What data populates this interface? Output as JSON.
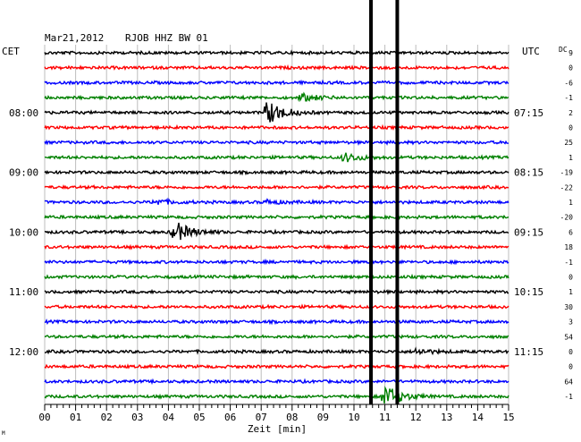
{
  "header": {
    "date": "Mar21,2012",
    "station": "RJOB HHZ BW 01",
    "left_tz": "CET",
    "right_tz": "UTC",
    "dc_label": "DC"
  },
  "chart_data": {
    "type": "line",
    "title": "Mar21,2012   RJOB HHZ BW 01",
    "xlabel": "Zeit [min]",
    "xlim": [
      0,
      15
    ],
    "x_ticks": [
      "00",
      "01",
      "02",
      "03",
      "04",
      "05",
      "06",
      "07",
      "08",
      "09",
      "10",
      "11",
      "12",
      "13",
      "14",
      "15"
    ],
    "grid": true,
    "colors": [
      "#000000",
      "#ff0000",
      "#0000ff",
      "#008000"
    ],
    "rows": 24,
    "left_hour_labels": [
      {
        "row": 4,
        "text": "08:00"
      },
      {
        "row": 8,
        "text": "09:00"
      },
      {
        "row": 12,
        "text": "10:00"
      },
      {
        "row": 16,
        "text": "11:00"
      },
      {
        "row": 20,
        "text": "12:00"
      }
    ],
    "right_hour_labels": [
      {
        "row": 4,
        "text": "07:15"
      },
      {
        "row": 8,
        "text": "08:15"
      },
      {
        "row": 12,
        "text": "09:15"
      },
      {
        "row": 16,
        "text": "10:15"
      },
      {
        "row": 20,
        "text": "11:15"
      }
    ],
    "dc_offsets": [
      "9",
      "0",
      "-6",
      "-1",
      "2",
      "0",
      "25",
      "1",
      "-19",
      "-22",
      "1",
      "-20",
      "6",
      "18",
      "-1",
      "0",
      "1",
      "30",
      "3",
      "54",
      "0",
      "0",
      "64",
      "-1"
    ],
    "events": [
      {
        "row": 3,
        "minute": 8.3,
        "amplitude": 4
      },
      {
        "row": 4,
        "minute": 7.2,
        "amplitude": 14
      },
      {
        "row": 7,
        "minute": 9.7,
        "amplitude": 5
      },
      {
        "row": 10,
        "minute": 3.6,
        "amplitude": 3
      },
      {
        "row": 10,
        "minute": 7.2,
        "amplitude": 2
      },
      {
        "row": 12,
        "minute": 4.2,
        "amplitude": 12
      },
      {
        "row": 20,
        "minute": 12.0,
        "amplitude": 3
      },
      {
        "row": 23,
        "minute": 11.0,
        "amplitude": 13
      }
    ],
    "vertical_markers": [
      10.55,
      11.4
    ]
  },
  "footer_mark": "M"
}
